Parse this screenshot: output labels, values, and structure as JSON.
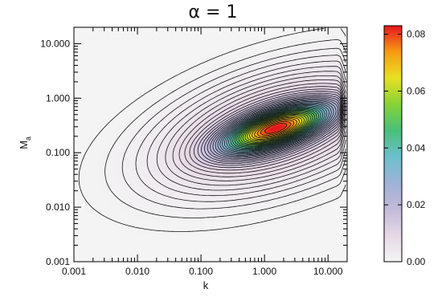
{
  "chart_data": {
    "type": "heatmap",
    "title": "α = 1",
    "xlabel": "k",
    "ylabel": "M",
    "ylabel_subscript": "a",
    "x_scale": "log",
    "y_scale": "log",
    "xlim": [
      0.001,
      20
    ],
    "ylim": [
      0.001,
      20
    ],
    "x_ticks": [
      {
        "value": 0.001,
        "label": "0.001"
      },
      {
        "value": 0.01,
        "label": "0.010"
      },
      {
        "value": 0.1,
        "label": "0.100"
      },
      {
        "value": 1,
        "label": "1.000"
      },
      {
        "value": 10,
        "label": "10.000"
      }
    ],
    "y_ticks": [
      {
        "value": 0.001,
        "label": "0.001"
      },
      {
        "value": 0.01,
        "label": "0.010"
      },
      {
        "value": 0.1,
        "label": "0.100"
      },
      {
        "value": 1,
        "label": "1.000"
      },
      {
        "value": 10,
        "label": "10.000"
      }
    ],
    "peak": {
      "k": 1.5,
      "Ma": 0.28,
      "value": 0.083
    },
    "contour_levels": 40,
    "colorbar": {
      "range": [
        0,
        0.083
      ],
      "ticks": [
        {
          "value": 0.0,
          "label": "0.00"
        },
        {
          "value": 0.02,
          "label": "0.02"
        },
        {
          "value": 0.04,
          "label": "0.04"
        },
        {
          "value": 0.06,
          "label": "0.06"
        },
        {
          "value": 0.08,
          "label": "0.08"
        }
      ],
      "colors": [
        "#f4f4f4",
        "#e6d8e6",
        "#c3b9da",
        "#9fb2d6",
        "#6cc0cc",
        "#49c07a",
        "#86d236",
        "#e8e025",
        "#f69a14",
        "#e5151d"
      ]
    }
  }
}
